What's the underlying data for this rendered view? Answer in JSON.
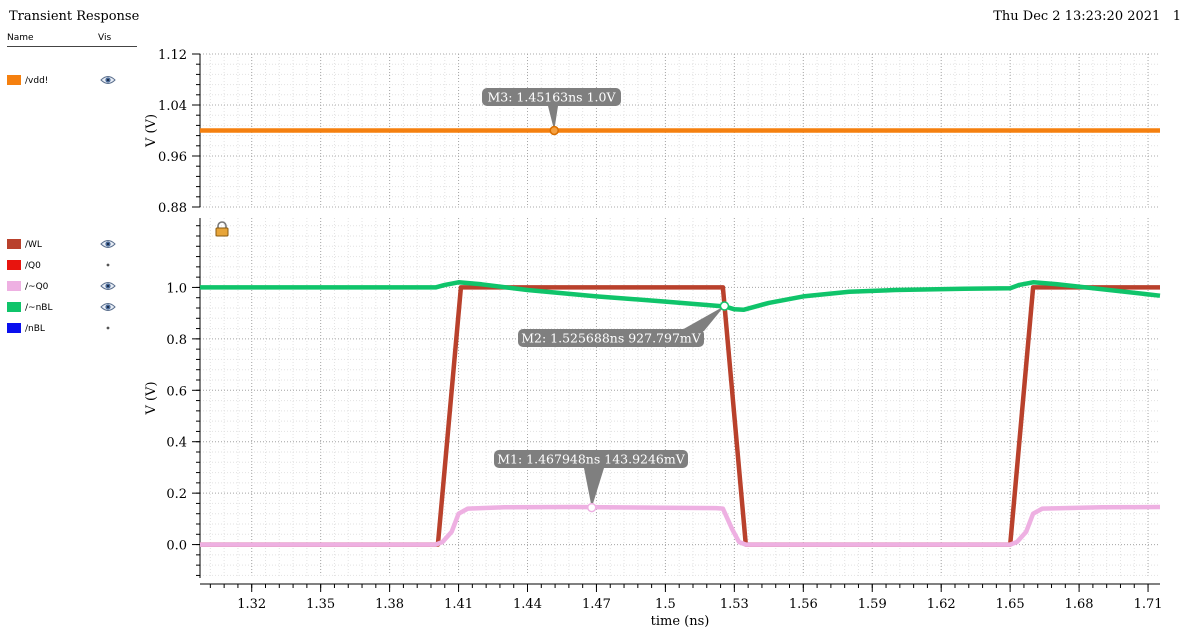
{
  "window": {
    "title": "Transient Response",
    "datetime": "Thu Dec 2 13:23:20 2021",
    "page": "1"
  },
  "legend": {
    "headers": {
      "name": "Name",
      "vis": "Vis"
    },
    "top": [
      {
        "name": "/vdd!",
        "color": "#f5800f",
        "visible": true
      }
    ],
    "bottom": [
      {
        "name": "/WL",
        "color": "#b9412c",
        "visible": true
      },
      {
        "name": "/Q0",
        "color": "#e8140e",
        "visible": false
      },
      {
        "name": "/~Q0",
        "color": "#eeb0e2",
        "visible": true
      },
      {
        "name": "/~nBL",
        "color": "#0fc46a",
        "visible": true
      },
      {
        "name": "/nBL",
        "color": "#0a10ee",
        "visible": false
      }
    ]
  },
  "chart_data": [
    {
      "type": "line",
      "xlabel": "time (ns)",
      "ylabel": "V (V)",
      "xlim": [
        1.2975,
        1.7152
      ],
      "ylim": [
        0.88,
        1.12
      ],
      "yticks": [
        "0.88",
        "0.96",
        "1.04",
        "1.12"
      ],
      "grid": true,
      "series": [
        {
          "name": "/vdd!",
          "color": "#f5800f",
          "x": [
            1.2975,
            1.7152
          ],
          "y": [
            1.0,
            1.0
          ]
        }
      ],
      "markers": [
        {
          "label": "M3: 1.45163ns 1.0V",
          "x": 1.45163,
          "y": 1.0
        }
      ]
    },
    {
      "type": "line",
      "xlabel": "time (ns)",
      "ylabel": "V (V)",
      "xlim": [
        1.2975,
        1.7152
      ],
      "ylim": [
        -0.13,
        1.27
      ],
      "yticks": [
        "0.0",
        "0.2",
        "0.4",
        "0.6",
        "0.8",
        "1.0"
      ],
      "xticks": [
        "1.32",
        "1.35",
        "1.38",
        "1.41",
        "1.44",
        "1.47",
        "1.5",
        "1.53",
        "1.56",
        "1.59",
        "1.62",
        "1.65",
        "1.68",
        "1.71"
      ],
      "grid": true,
      "series": [
        {
          "name": "/WL",
          "color": "#b9412c",
          "x": [
            1.2975,
            1.401,
            1.411,
            1.525,
            1.535,
            1.65,
            1.66,
            1.7152
          ],
          "y": [
            0.0,
            0.0,
            1.0,
            1.0,
            0.0,
            0.0,
            1.0,
            1.0
          ]
        },
        {
          "name": "/~Q0",
          "color": "#eeb0e2",
          "x": [
            1.2975,
            1.4,
            1.403,
            1.407,
            1.41,
            1.414,
            1.43,
            1.46,
            1.5,
            1.522,
            1.525,
            1.529,
            1.532,
            1.535,
            1.65,
            1.653,
            1.657,
            1.66,
            1.664,
            1.69,
            1.7152
          ],
          "y": [
            0.0,
            0.0,
            0.01,
            0.05,
            0.12,
            0.14,
            0.145,
            0.146,
            0.143,
            0.142,
            0.14,
            0.06,
            0.01,
            0.0,
            0.0,
            0.01,
            0.05,
            0.12,
            0.14,
            0.145,
            0.146
          ]
        },
        {
          "name": "/~nBL",
          "color": "#0fc46a",
          "x": [
            1.2975,
            1.4,
            1.404,
            1.41,
            1.42,
            1.44,
            1.47,
            1.5,
            1.52,
            1.526,
            1.53,
            1.534,
            1.545,
            1.56,
            1.58,
            1.6,
            1.63,
            1.65,
            1.654,
            1.66,
            1.67,
            1.7152
          ],
          "y": [
            1.0,
            1.0,
            1.01,
            1.02,
            1.012,
            0.99,
            0.965,
            0.945,
            0.93,
            0.926,
            0.915,
            0.913,
            0.94,
            0.965,
            0.983,
            0.99,
            0.995,
            0.997,
            1.01,
            1.02,
            1.013,
            0.968
          ]
        }
      ],
      "markers": [
        {
          "label": "M2: 1.525688ns 927.797mV",
          "x": 1.525688,
          "y": 0.9278
        },
        {
          "label": "M1: 1.467948ns 143.9246mV",
          "x": 1.467948,
          "y": 0.1439
        }
      ]
    }
  ]
}
